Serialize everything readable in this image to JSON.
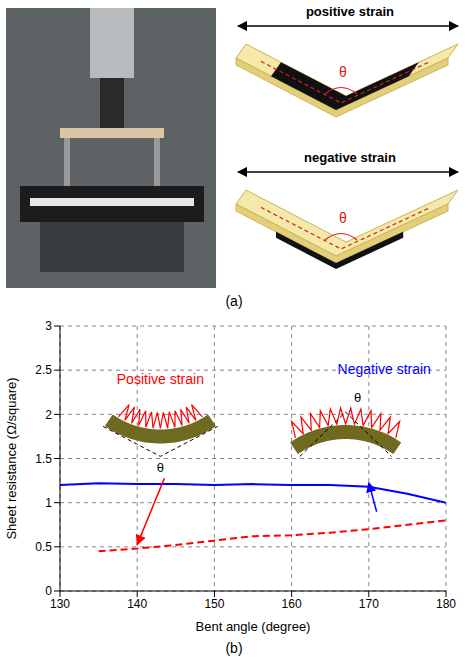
{
  "panel_a": {
    "label": "(a)",
    "diagrams": [
      {
        "title": "positive strain",
        "angle": "θ"
      },
      {
        "title": "negative strain",
        "angle": "θ"
      }
    ]
  },
  "chart_data": {
    "type": "line",
    "x_label": "Bent angle (degree)",
    "y_label": "Sheet resistance (Ω/square)",
    "x": [
      130,
      135,
      140,
      145,
      150,
      155,
      160,
      165,
      170,
      175,
      180
    ],
    "xlim": [
      130,
      180
    ],
    "xticks": [
      130,
      140,
      150,
      160,
      170,
      180
    ],
    "ylim": [
      0,
      3
    ],
    "yticks": [
      0,
      0.5,
      1,
      1.5,
      2,
      2.5,
      3
    ],
    "grid": true,
    "series": [
      {
        "name": "Positive strain",
        "color": "#ff0000",
        "line_style": "dashed",
        "values": [
          null,
          0.45,
          0.48,
          0.52,
          0.57,
          0.62,
          0.63,
          0.66,
          0.7,
          0.75,
          0.8
        ]
      },
      {
        "name": "Negative strain",
        "color": "#0000ff",
        "line_style": "solid",
        "values": [
          1.2,
          1.22,
          1.21,
          1.21,
          1.2,
          1.21,
          1.2,
          1.2,
          1.18,
          1.1,
          1.0
        ]
      }
    ],
    "annotations": {
      "angle": "θ",
      "panel": "(b)"
    }
  }
}
